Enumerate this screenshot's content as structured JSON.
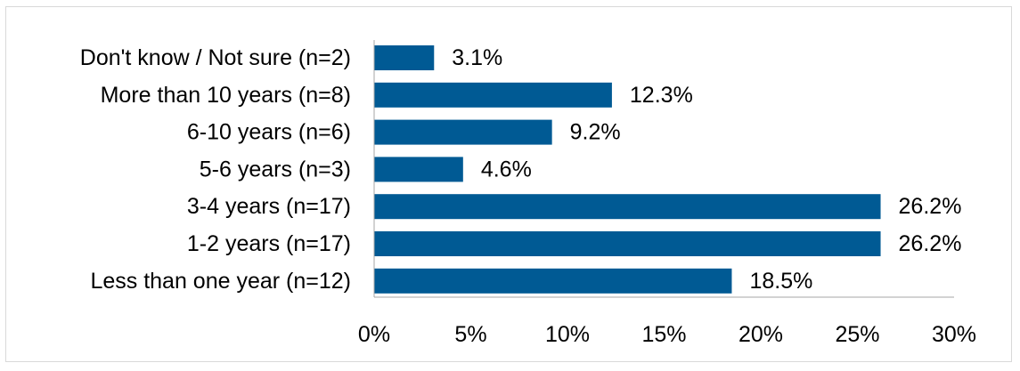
{
  "chart_data": {
    "type": "bar",
    "orientation": "horizontal",
    "categories": [
      "Don't know / Not sure (n=2)",
      "More than 10 years (n=8)",
      "6-10 years (n=6)",
      "5-6 years (n=3)",
      "3-4 years (n=17)",
      "1-2 years (n=17)",
      "Less than one year (n=12)"
    ],
    "values": [
      3.1,
      12.3,
      9.2,
      4.6,
      26.2,
      26.2,
      18.5
    ],
    "value_labels": [
      "3.1%",
      "12.3%",
      "9.2%",
      "4.6%",
      "26.2%",
      "26.2%",
      "18.5%"
    ],
    "xlim": [
      0,
      30
    ],
    "xticks": [
      0,
      5,
      10,
      15,
      20,
      25,
      30
    ],
    "xtick_labels": [
      "0%",
      "5%",
      "10%",
      "15%",
      "20%",
      "25%",
      "30%"
    ],
    "grid": false,
    "bar_color": "#005a94",
    "axis_color": "#a6a6a6"
  }
}
